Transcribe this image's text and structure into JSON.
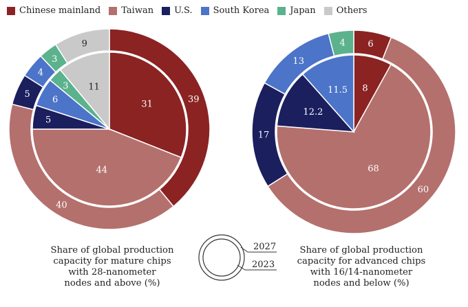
{
  "legend": [
    {
      "key": "china",
      "label": "Chinese mainland",
      "color": "#8b2323"
    },
    {
      "key": "taiwan",
      "label": "Taiwan",
      "color": "#b4706d"
    },
    {
      "key": "us",
      "label": "U.S.",
      "color": "#1b1f5e"
    },
    {
      "key": "korea",
      "label": "South Korea",
      "color": "#4c74c8"
    },
    {
      "key": "japan",
      "label": "Japan",
      "color": "#5bb28c"
    },
    {
      "key": "others",
      "label": "Others",
      "color": "#c9c9c9"
    }
  ],
  "captions": {
    "left": [
      "Share of global production",
      "capacity for mature chips",
      "with 28-nanometer",
      "nodes and above (%)"
    ],
    "right": [
      "Share of global production",
      "capacity for advanced chips",
      "with 16/14-nanometer",
      "nodes and below (%)"
    ]
  },
  "ring_key": {
    "outer": "2027",
    "inner": "2023"
  },
  "chart_data": [
    {
      "type": "pie",
      "title": "Share of global production capacity for mature chips with 28-nanometer nodes and above (%)",
      "categories": [
        "Chinese mainland",
        "Taiwan",
        "U.S.",
        "South Korea",
        "Japan",
        "Others"
      ],
      "series": [
        {
          "name": "2027",
          "ring": "outer",
          "values": [
            39,
            40,
            5,
            4,
            3,
            9
          ]
        },
        {
          "name": "2023",
          "ring": "inner",
          "values": [
            31,
            44,
            5,
            6,
            3,
            11
          ]
        }
      ]
    },
    {
      "type": "pie",
      "title": "Share of global production capacity for advanced chips with 16/14-nanometer nodes and below (%)",
      "categories": [
        "Chinese mainland",
        "Taiwan",
        "U.S.",
        "South Korea",
        "Japan",
        "Others"
      ],
      "series": [
        {
          "name": "2027",
          "ring": "outer",
          "values": [
            6,
            60,
            17,
            13,
            4,
            null
          ]
        },
        {
          "name": "2023",
          "ring": "inner",
          "values": [
            8,
            68,
            12.2,
            11.5,
            null,
            null
          ]
        }
      ]
    }
  ]
}
